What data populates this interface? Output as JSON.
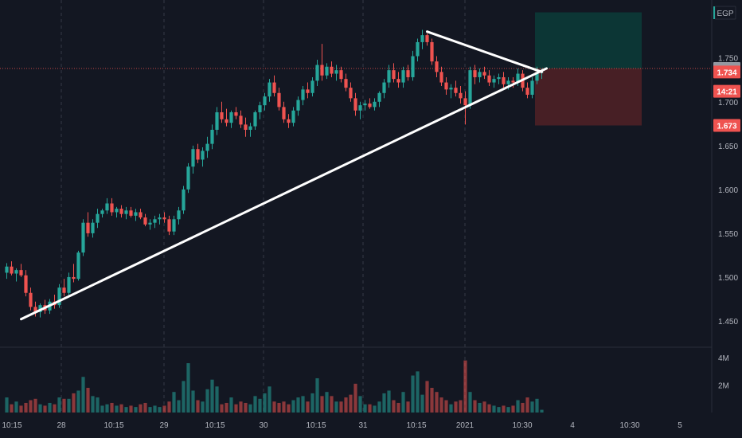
{
  "chart_data": {
    "type": "candlestick",
    "currency": "EGP",
    "ylim": [
      1.42,
      1.8
    ],
    "y_ticks": [
      "1.750",
      "1.700",
      "1.650",
      "1.600",
      "1.550",
      "1.500",
      "1.450"
    ],
    "y_tick_values": [
      1.75,
      1.7,
      1.65,
      1.6,
      1.55,
      1.5,
      1.45
    ],
    "x_ticks": [
      "10:15",
      "28",
      "10:15",
      "29",
      "10:15",
      "30",
      "10:15",
      "31",
      "10:15",
      "2021",
      "10:30",
      "4",
      "10:30",
      "5"
    ],
    "volume_ticks": [
      "4M",
      "2M"
    ],
    "volume_tick_values": [
      4,
      2
    ],
    "volume_max": 4.3,
    "price_tags": [
      {
        "text": "1.738",
        "value": 1.738,
        "color": "#9598a1"
      },
      {
        "text": "1.734",
        "value": 1.734,
        "color": "#ef5350"
      },
      {
        "text": "14:21",
        "value": 1.712,
        "color": "#ef5350"
      },
      {
        "text": "1.673",
        "value": 1.673,
        "color": "#ef5350"
      }
    ],
    "colors": {
      "up": "#26a69a",
      "down": "#ef5350",
      "trendline": "#ffffff",
      "profit_zone": "#0c3837",
      "loss_zone": "#4a2026",
      "grid": "#363a45",
      "current_price_line": "#ef5350"
    },
    "position": {
      "entry": 1.738,
      "target": 1.802,
      "stop": 1.673
    },
    "trendlines": [
      {
        "from": [
          3,
          1.452
        ],
        "to": [
          113,
          1.738
        ]
      },
      {
        "from": [
          88,
          1.78
        ],
        "to": [
          112,
          1.734
        ]
      }
    ],
    "candles": [
      [
        1.505,
        1.516,
        1.498,
        1.512,
        1.1
      ],
      [
        1.512,
        1.518,
        1.502,
        1.504,
        0.6
      ],
      [
        1.504,
        1.51,
        1.495,
        1.508,
        0.8
      ],
      [
        1.508,
        1.515,
        1.5,
        1.502,
        0.5
      ],
      [
        1.502,
        1.508,
        1.478,
        1.482,
        0.7
      ],
      [
        1.482,
        1.488,
        1.462,
        1.466,
        0.9
      ],
      [
        1.466,
        1.472,
        1.455,
        1.46,
        1.0
      ],
      [
        1.46,
        1.47,
        1.454,
        1.468,
        0.6
      ],
      [
        1.468,
        1.474,
        1.458,
        1.462,
        0.5
      ],
      [
        1.462,
        1.475,
        1.458,
        1.472,
        0.7
      ],
      [
        1.472,
        1.48,
        1.464,
        1.468,
        0.6
      ],
      [
        1.468,
        1.492,
        1.465,
        1.488,
        1.1
      ],
      [
        1.488,
        1.498,
        1.478,
        1.482,
        1.0
      ],
      [
        1.482,
        1.505,
        1.478,
        1.5,
        1.0
      ],
      [
        1.5,
        1.515,
        1.494,
        1.498,
        1.4
      ],
      [
        1.498,
        1.53,
        1.496,
        1.528,
        1.6
      ],
      [
        1.528,
        1.566,
        1.524,
        1.562,
        2.6
      ],
      [
        1.562,
        1.574,
        1.546,
        1.55,
        1.8
      ],
      [
        1.55,
        1.566,
        1.545,
        1.562,
        1.2
      ],
      [
        1.562,
        1.578,
        1.556,
        1.572,
        1.1
      ],
      [
        1.572,
        1.578,
        1.568,
        1.576,
        0.5
      ],
      [
        1.576,
        1.59,
        1.572,
        1.584,
        0.6
      ],
      [
        1.584,
        1.59,
        1.57,
        1.574,
        0.7
      ],
      [
        1.574,
        1.58,
        1.568,
        1.578,
        0.5
      ],
      [
        1.578,
        1.582,
        1.568,
        1.572,
        0.6
      ],
      [
        1.572,
        1.58,
        1.566,
        1.576,
        0.4
      ],
      [
        1.576,
        1.58,
        1.568,
        1.57,
        0.5
      ],
      [
        1.57,
        1.578,
        1.564,
        1.574,
        0.4
      ],
      [
        1.574,
        1.578,
        1.566,
        1.568,
        0.6
      ],
      [
        1.568,
        1.572,
        1.558,
        1.56,
        0.7
      ],
      [
        1.56,
        1.566,
        1.554,
        1.562,
        0.4
      ],
      [
        1.562,
        1.57,
        1.556,
        1.566,
        0.5
      ],
      [
        1.566,
        1.572,
        1.56,
        1.568,
        0.4
      ],
      [
        1.568,
        1.574,
        1.562,
        1.566,
        0.5
      ],
      [
        1.566,
        1.57,
        1.548,
        1.552,
        0.8
      ],
      [
        1.552,
        1.57,
        1.548,
        1.566,
        1.5
      ],
      [
        1.566,
        1.58,
        1.56,
        1.576,
        0.9
      ],
      [
        1.576,
        1.604,
        1.572,
        1.6,
        2.3
      ],
      [
        1.6,
        1.63,
        1.596,
        1.626,
        3.6
      ],
      [
        1.626,
        1.65,
        1.618,
        1.646,
        1.6
      ],
      [
        1.646,
        1.652,
        1.63,
        1.634,
        0.9
      ],
      [
        1.634,
        1.648,
        1.626,
        1.644,
        0.8
      ],
      [
        1.644,
        1.66,
        1.636,
        1.652,
        1.7
      ],
      [
        1.652,
        1.674,
        1.646,
        1.668,
        2.4
      ],
      [
        1.668,
        1.694,
        1.662,
        1.688,
        1.9
      ],
      [
        1.688,
        1.7,
        1.676,
        1.68,
        0.6
      ],
      [
        1.68,
        1.692,
        1.672,
        1.676,
        0.7
      ],
      [
        1.676,
        1.69,
        1.67,
        1.688,
        1.1
      ],
      [
        1.688,
        1.694,
        1.68,
        1.684,
        0.6
      ],
      [
        1.684,
        1.69,
        1.67,
        1.674,
        0.8
      ],
      [
        1.674,
        1.682,
        1.66,
        1.668,
        0.7
      ],
      [
        1.668,
        1.676,
        1.66,
        1.672,
        0.6
      ],
      [
        1.672,
        1.69,
        1.668,
        1.688,
        1.2
      ],
      [
        1.688,
        1.7,
        1.68,
        1.696,
        1.0
      ],
      [
        1.696,
        1.71,
        1.69,
        1.706,
        1.4
      ],
      [
        1.706,
        1.726,
        1.7,
        1.722,
        1.9
      ],
      [
        1.722,
        1.73,
        1.706,
        1.71,
        0.8
      ],
      [
        1.71,
        1.716,
        1.69,
        1.694,
        0.7
      ],
      [
        1.694,
        1.7,
        1.676,
        1.68,
        0.8
      ],
      [
        1.68,
        1.686,
        1.67,
        1.676,
        0.6
      ],
      [
        1.676,
        1.694,
        1.672,
        1.69,
        0.9
      ],
      [
        1.69,
        1.706,
        1.684,
        1.702,
        1.1
      ],
      [
        1.702,
        1.718,
        1.696,
        1.714,
        1.2
      ],
      [
        1.714,
        1.722,
        1.704,
        1.71,
        0.8
      ],
      [
        1.71,
        1.728,
        1.706,
        1.724,
        1.4
      ],
      [
        1.724,
        1.748,
        1.718,
        1.742,
        2.5
      ],
      [
        1.742,
        1.766,
        1.724,
        1.73,
        1.2
      ],
      [
        1.73,
        1.744,
        1.726,
        1.74,
        1.5
      ],
      [
        1.74,
        1.746,
        1.728,
        1.732,
        1.2
      ],
      [
        1.732,
        1.742,
        1.724,
        1.736,
        0.8
      ],
      [
        1.736,
        1.74,
        1.722,
        1.726,
        0.8
      ],
      [
        1.726,
        1.732,
        1.712,
        1.716,
        1.1
      ],
      [
        1.716,
        1.722,
        1.7,
        1.704,
        1.3
      ],
      [
        1.704,
        1.71,
        1.684,
        1.69,
        2.1
      ],
      [
        1.69,
        1.7,
        1.68,
        1.696,
        1.2
      ],
      [
        1.696,
        1.702,
        1.69,
        1.698,
        0.6
      ],
      [
        1.698,
        1.704,
        1.692,
        1.694,
        0.6
      ],
      [
        1.694,
        1.704,
        1.69,
        1.7,
        0.5
      ],
      [
        1.7,
        1.712,
        1.694,
        1.71,
        0.8
      ],
      [
        1.71,
        1.726,
        1.704,
        1.722,
        1.4
      ],
      [
        1.722,
        1.742,
        1.716,
        1.736,
        1.6
      ],
      [
        1.736,
        1.744,
        1.722,
        1.726,
        0.9
      ],
      [
        1.726,
        1.734,
        1.716,
        1.722,
        0.7
      ],
      [
        1.722,
        1.74,
        1.716,
        1.736,
        1.5
      ],
      [
        1.736,
        1.742,
        1.724,
        1.728,
        0.8
      ],
      [
        1.728,
        1.758,
        1.724,
        1.752,
        2.7
      ],
      [
        1.752,
        1.772,
        1.746,
        1.768,
        3.0
      ],
      [
        1.768,
        1.782,
        1.76,
        1.776,
        1.3
      ],
      [
        1.776,
        1.778,
        1.764,
        1.768,
        2.3
      ],
      [
        1.768,
        1.772,
        1.742,
        1.746,
        1.8
      ],
      [
        1.746,
        1.752,
        1.728,
        1.734,
        1.5
      ],
      [
        1.734,
        1.74,
        1.718,
        1.722,
        1.1
      ],
      [
        1.722,
        1.728,
        1.708,
        1.714,
        0.9
      ],
      [
        1.714,
        1.72,
        1.704,
        1.716,
        0.6
      ],
      [
        1.716,
        1.724,
        1.706,
        1.71,
        0.8
      ],
      [
        1.71,
        1.718,
        1.698,
        1.704,
        0.9
      ],
      [
        1.704,
        1.712,
        1.674,
        1.696,
        3.8
      ],
      [
        1.696,
        1.74,
        1.692,
        1.736,
        1.5
      ],
      [
        1.736,
        1.742,
        1.72,
        1.728,
        0.9
      ],
      [
        1.728,
        1.738,
        1.722,
        1.734,
        0.7
      ],
      [
        1.734,
        1.74,
        1.726,
        1.73,
        0.8
      ],
      [
        1.73,
        1.736,
        1.718,
        1.722,
        0.6
      ],
      [
        1.722,
        1.73,
        1.716,
        1.726,
        0.5
      ],
      [
        1.726,
        1.732,
        1.72,
        1.728,
        0.4
      ],
      [
        1.728,
        1.734,
        1.716,
        1.72,
        0.5
      ],
      [
        1.72,
        1.728,
        1.714,
        1.724,
        0.4
      ],
      [
        1.724,
        1.728,
        1.716,
        1.722,
        0.5
      ],
      [
        1.722,
        1.738,
        1.718,
        1.732,
        0.9
      ],
      [
        1.732,
        1.736,
        1.712,
        1.716,
        0.7
      ],
      [
        1.716,
        1.722,
        1.704,
        1.708,
        1.1
      ],
      [
        1.708,
        1.728,
        1.704,
        1.724,
        0.8
      ],
      [
        1.724,
        1.74,
        1.72,
        1.734,
        1.0
      ],
      [
        1.734,
        1.738,
        1.726,
        1.734,
        0.2
      ]
    ]
  }
}
